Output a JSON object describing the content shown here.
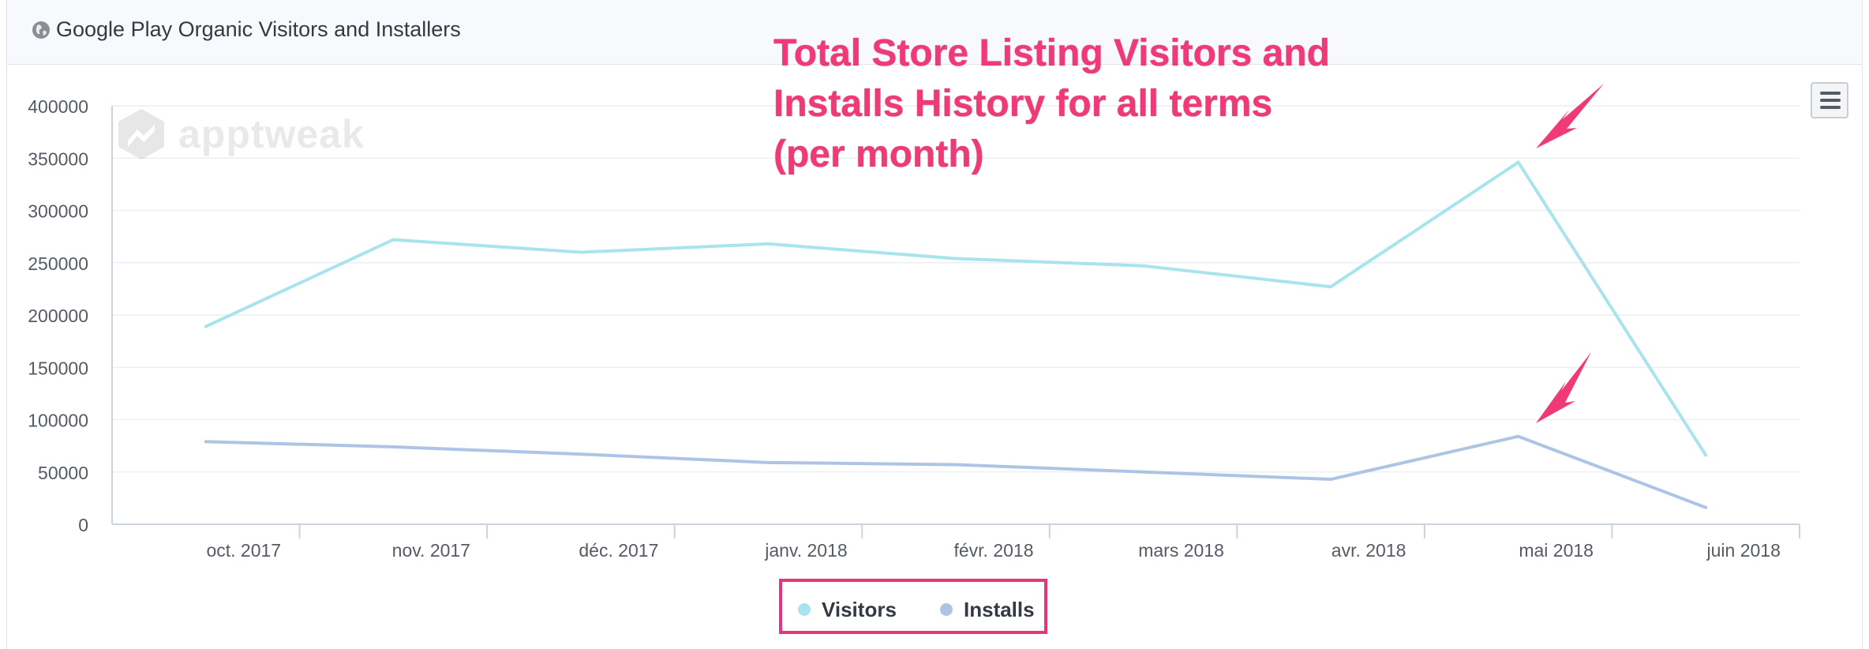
{
  "panel": {
    "title": "Google Play Organic Visitors and Installers",
    "globe_icon": "globe-icon",
    "menu_icon": "hamburger-menu-icon"
  },
  "annotation": "Total Store Listing Visitors and\nInstalls History for all terms\n(per month)",
  "watermark": "apptweak",
  "legend": {
    "visitors": "Visitors",
    "installs": "Installs"
  },
  "colors": {
    "visitors": "#a8e3ee",
    "installs": "#aec4e4",
    "annotation": "#ef3a77",
    "grid": "#eceff3"
  },
  "chart_data": {
    "type": "line",
    "categories": [
      "oct. 2017",
      "nov. 2017",
      "déc. 2017",
      "janv. 2018",
      "févr. 2018",
      "mars 2018",
      "avr. 2018",
      "mai 2018",
      "juin 2018"
    ],
    "series": [
      {
        "name": "Visitors",
        "values": [
          189000,
          272000,
          260000,
          268000,
          254000,
          247000,
          227000,
          346000,
          66000
        ]
      },
      {
        "name": "Installs",
        "values": [
          79000,
          74000,
          67000,
          59000,
          57000,
          50000,
          43000,
          84000,
          16000
        ]
      }
    ],
    "yticks": [
      "0",
      "50000",
      "100000",
      "150000",
      "200000",
      "250000",
      "300000",
      "350000",
      "400000"
    ],
    "ylim": [
      0,
      400000
    ],
    "grid": true,
    "legend_position": "bottom-center"
  }
}
